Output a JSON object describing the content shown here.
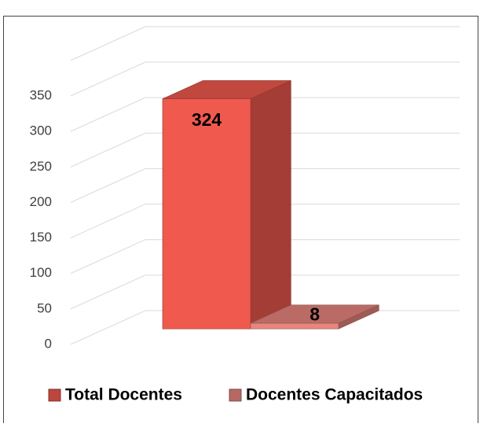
{
  "chart_data": {
    "type": "bar3d",
    "categories": [
      null
    ],
    "series": [
      {
        "name": "Total Docentes",
        "color": "#f05a4e",
        "values": [
          324
        ]
      },
      {
        "name": "Docentes Capacitados",
        "color": "#e8867e",
        "values": [
          8
        ]
      }
    ],
    "ylim": [
      0,
      400
    ],
    "yticks": [
      0,
      50,
      100,
      150,
      200,
      250,
      300,
      350
    ],
    "grid": true
  }
}
